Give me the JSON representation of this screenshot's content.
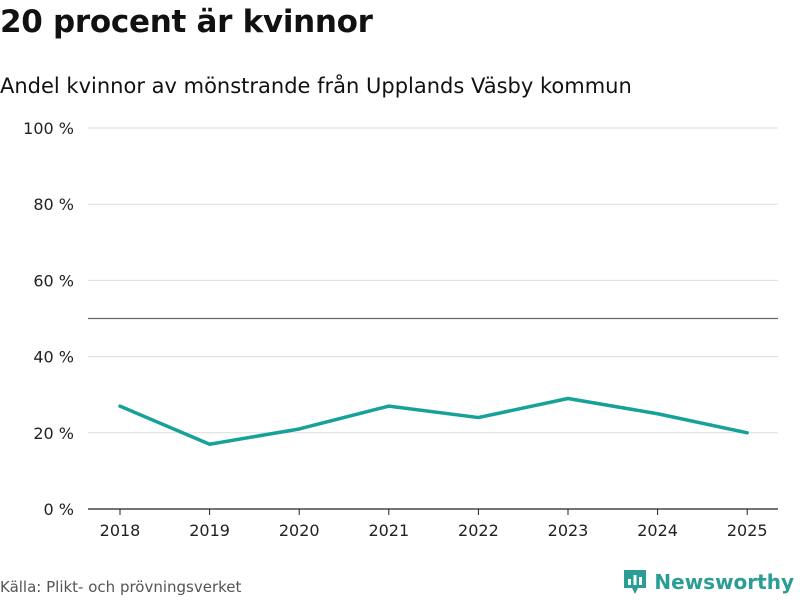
{
  "header": {
    "title": "20 procent är kvinnor",
    "subtitle": "Andel kvinnor av mönstrande från Upplands Väsby kommun"
  },
  "chart_data": {
    "type": "line",
    "x": [
      "2018",
      "2019",
      "2020",
      "2021",
      "2022",
      "2023",
      "2024",
      "2025"
    ],
    "series": [
      {
        "name": "Andel kvinnor",
        "values": [
          27,
          17,
          21,
          27,
          24,
          29,
          25,
          20
        ],
        "color": "#16a298"
      }
    ],
    "ylim": [
      0,
      100
    ],
    "yticks": [
      0,
      20,
      40,
      60,
      80,
      100
    ],
    "ytick_labels": [
      "0 %",
      "20 %",
      "40 %",
      "60 %",
      "80 %",
      "100 %"
    ],
    "reference_line": 50,
    "grid": true
  },
  "footer": {
    "source": "Källa: Plikt- och prövningsverket",
    "brand": "Newsworthy",
    "brand_color": "#2a9d95"
  }
}
